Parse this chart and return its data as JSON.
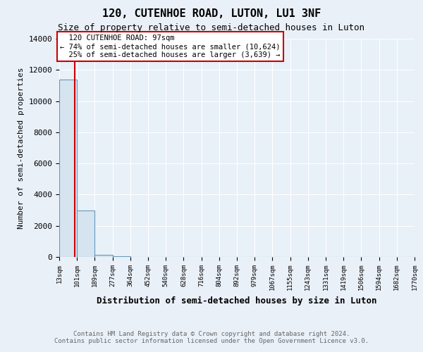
{
  "title1": "120, CUTENHOE ROAD, LUTON, LU1 3NF",
  "title2": "Size of property relative to semi-detached houses in Luton",
  "xlabel": "Distribution of semi-detached houses by size in Luton",
  "ylabel": "Number of semi-detached properties",
  "bar_heights": [
    11400,
    3000,
    130,
    50,
    20,
    10,
    5,
    3,
    2,
    1,
    1,
    1,
    0,
    0,
    0,
    0,
    0,
    0,
    0,
    0
  ],
  "bar_color": "#d6e4f0",
  "bar_edge_color": "#6699bb",
  "property_bin_idx": 0.88,
  "property_label": "120 CUTENHOE ROAD: 97sqm",
  "pct_smaller": 74,
  "n_smaller": "10,624",
  "pct_larger": 25,
  "n_larger": "3,639",
  "vline_color": "#cc0000",
  "annotation_box_color": "#cc0000",
  "ylim": [
    0,
    14000
  ],
  "yticks": [
    0,
    2000,
    4000,
    6000,
    8000,
    10000,
    12000,
    14000
  ],
  "tick_labels": [
    "13sqm",
    "101sqm",
    "189sqm",
    "277sqm",
    "364sqm",
    "452sqm",
    "540sqm",
    "628sqm",
    "716sqm",
    "804sqm",
    "892sqm",
    "979sqm",
    "1067sqm",
    "1155sqm",
    "1243sqm",
    "1331sqm",
    "1419sqm",
    "1506sqm",
    "1594sqm",
    "1682sqm",
    "1770sqm"
  ],
  "footer1": "Contains HM Land Registry data © Crown copyright and database right 2024.",
  "footer2": "Contains public sector information licensed under the Open Government Licence v3.0.",
  "background_color": "#eaf0f8",
  "plot_bg_color": "#e8f0f8"
}
